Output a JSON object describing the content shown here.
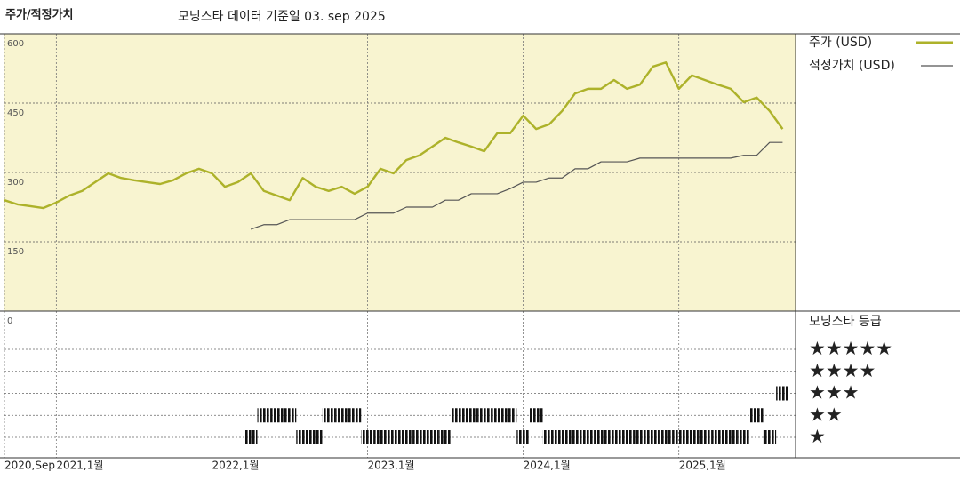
{
  "chart_data": {
    "type": "line",
    "title": "주가/적정가치",
    "subtitle": "모닝스타 데이터 기준일 03. sep 2025",
    "x": [
      "2020-09",
      "2020-10",
      "2020-11",
      "2020-12",
      "2021-01",
      "2021-02",
      "2021-03",
      "2021-04",
      "2021-05",
      "2021-06",
      "2021-07",
      "2021-08",
      "2021-09",
      "2021-10",
      "2021-11",
      "2021-12",
      "2022-01",
      "2022-02",
      "2022-03",
      "2022-04",
      "2022-05",
      "2022-06",
      "2022-07",
      "2022-08",
      "2022-09",
      "2022-10",
      "2022-11",
      "2022-12",
      "2023-01",
      "2023-02",
      "2023-03",
      "2023-04",
      "2023-05",
      "2023-06",
      "2023-07",
      "2023-08",
      "2023-09",
      "2023-10",
      "2023-11",
      "2023-12",
      "2024-01",
      "2024-02",
      "2024-03",
      "2024-04",
      "2024-05",
      "2024-06",
      "2024-07",
      "2024-08",
      "2024-09",
      "2024-10",
      "2024-11",
      "2024-12",
      "2025-01",
      "2025-02",
      "2025-03",
      "2025-04",
      "2025-05",
      "2025-06",
      "2025-07",
      "2025-08",
      "2025-09"
    ],
    "xlim": [
      "2020-09",
      "2025-10"
    ],
    "xticks": [
      {
        "value": "2020-09",
        "label": "2020,Sep"
      },
      {
        "value": "2021-01",
        "label": "2021,1월"
      },
      {
        "value": "2022-01",
        "label": "2022,1월"
      },
      {
        "value": "2023-01",
        "label": "2023,1월"
      },
      {
        "value": "2024-01",
        "label": "2024,1월"
      },
      {
        "value": "2025-01",
        "label": "2025,1월"
      }
    ],
    "ylim": [
      0,
      600
    ],
    "yticks": [
      0,
      150,
      300,
      450,
      600
    ],
    "grid": true,
    "series": [
      {
        "name": "주가 (USD)",
        "color": "#adb22a",
        "values": [
          240,
          231,
          227,
          223,
          235,
          250,
          260,
          279,
          298,
          288,
          283,
          279,
          275,
          283,
          298,
          308,
          298,
          269,
          279,
          298,
          260,
          250,
          240,
          288,
          269,
          260,
          269,
          254,
          269,
          308,
          298,
          327,
          337,
          356,
          375,
          365,
          356,
          346,
          385,
          385,
          423,
          394,
          404,
          433,
          471,
          481,
          481,
          500,
          481,
          490,
          529,
          538,
          481,
          510,
          500,
          490,
          481,
          452,
          462,
          433,
          394
        ]
      },
      {
        "name": "적정가치 (USD)",
        "color": "#555555",
        "values": [
          null,
          null,
          null,
          null,
          null,
          null,
          null,
          null,
          null,
          null,
          null,
          null,
          null,
          null,
          null,
          null,
          null,
          null,
          null,
          177,
          187,
          187,
          198,
          198,
          198,
          198,
          198,
          198,
          212,
          212,
          212,
          225,
          225,
          225,
          240,
          240,
          254,
          254,
          254,
          265,
          279,
          279,
          288,
          288,
          308,
          308,
          323,
          323,
          323,
          331,
          331,
          331,
          331,
          331,
          331,
          331,
          331,
          337,
          337,
          365,
          365
        ]
      }
    ],
    "rating": {
      "title": "모닝스타 등급",
      "levels": [
        "★",
        "★★",
        "★★★",
        "★★★★",
        "★★★★★"
      ],
      "color": "#111111",
      "values": [
        null,
        null,
        null,
        null,
        null,
        null,
        null,
        null,
        null,
        null,
        null,
        null,
        null,
        null,
        null,
        null,
        null,
        null,
        null,
        1,
        2,
        2,
        2,
        1,
        1,
        2,
        2,
        2,
        1,
        1,
        1,
        1,
        1,
        1,
        1,
        2,
        2,
        2,
        2,
        2,
        1,
        2,
        1,
        1,
        1,
        1,
        1,
        1,
        1,
        1,
        1,
        1,
        1,
        1,
        1,
        1,
        1,
        1,
        2,
        1,
        3
      ]
    }
  }
}
